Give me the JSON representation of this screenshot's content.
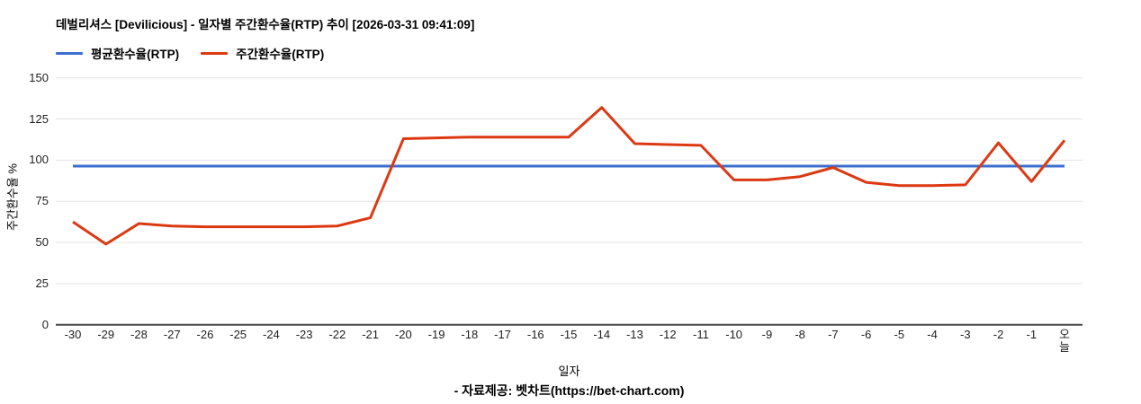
{
  "page": {
    "footer": "- 자료제공: 벳차트(https://bet-chart.com)"
  },
  "legend": [
    {
      "label": "평균환수율(RTP)",
      "color": "#3d6ecf"
    },
    {
      "label": "주간환수율(RTP)",
      "color": "#dc3912"
    }
  ],
  "chart_data": {
    "type": "line",
    "title": "데벌리셔스 [Devilicious] - 일자별 주간환수율(RTP) 추이 [2026-03-31 09:41:09]",
    "xlabel": "일자",
    "ylabel": "주간환수율 %",
    "ylim": [
      0,
      150
    ],
    "yticks": [
      0,
      25,
      50,
      75,
      100,
      125,
      150
    ],
    "grid": true,
    "legend_position": "top-left",
    "categories": [
      "-30",
      "-29",
      "-28",
      "-27",
      "-26",
      "-25",
      "-24",
      "-23",
      "-22",
      "-21",
      "-20",
      "-19",
      "-18",
      "-17",
      "-16",
      "-15",
      "-14",
      "-13",
      "-12",
      "-11",
      "-10",
      "-9",
      "-8",
      "-7",
      "-6",
      "-5",
      "-4",
      "-3",
      "-2",
      "-1",
      "오늘"
    ],
    "series": [
      {
        "name": "평균환수율(RTP)",
        "color": "#3d6ecf",
        "values": [
          96.4,
          96.4,
          96.4,
          96.4,
          96.4,
          96.4,
          96.4,
          96.4,
          96.4,
          96.4,
          96.4,
          96.4,
          96.4,
          96.4,
          96.4,
          96.4,
          96.4,
          96.4,
          96.4,
          96.4,
          96.4,
          96.4,
          96.4,
          96.4,
          96.4,
          96.4,
          96.4,
          96.4,
          96.4,
          96.4,
          96.4
        ]
      },
      {
        "name": "주간환수율(RTP)",
        "color": "#dc3912",
        "values": [
          62.5,
          49,
          61.5,
          60,
          59.5,
          59.5,
          59.5,
          59.5,
          60,
          65,
          113,
          113.5,
          114,
          114,
          114,
          114,
          132,
          110,
          109.5,
          109,
          88,
          88,
          90,
          95.5,
          86.5,
          84.5,
          84.5,
          85,
          110.5,
          87,
          112
        ]
      }
    ],
    "colors": {
      "gridline": "#e3e3e3",
      "zero_axis": "#484848",
      "tick_text": "#1f1f1f"
    }
  }
}
